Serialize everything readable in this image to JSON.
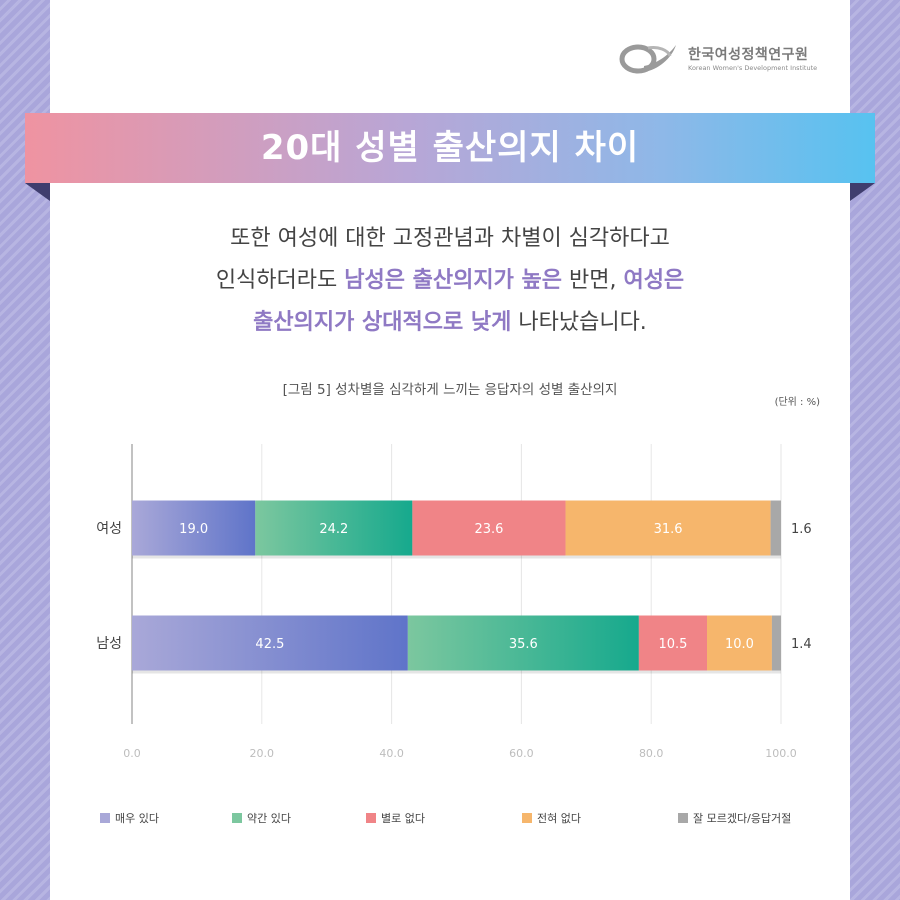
{
  "org": {
    "name": "한국여성정책연구원",
    "name_en": "Korean Women's Development Institute"
  },
  "banner": {
    "title": "20대 성별 출산의지 차이"
  },
  "intro": {
    "line1": "또한 여성에 대한 고정관념과 차별이 심각하다고",
    "line2_a": "인식하더라도 ",
    "line2_hl1": "남성은 출산의지가 높은",
    "line2_b": " 반면, ",
    "line2_hl2": "여성은",
    "line3_hl": "출산의지가 상대적으로 낮게",
    "line3_b": " 나타났습니다."
  },
  "figure": {
    "title": "[그림 5] 성차별을 심각하게 느끼는 응답자의 성별 출산의지",
    "unit": "(단위 : %)"
  },
  "colors": {
    "very": [
      "#a9a8d8",
      "#5f74c9"
    ],
    "some": [
      "#7cc79f",
      "#16a98d"
    ],
    "not_much": [
      "#f08487",
      "#f08487"
    ],
    "none": [
      "#f6b66c",
      "#f6b66c"
    ],
    "dk": [
      "#a8a8a8",
      "#a8a8a8"
    ],
    "highlight": "#8f79c4"
  },
  "chart_data": {
    "type": "bar",
    "orientation": "horizontal",
    "stacked": true,
    "categories": [
      "여성",
      "남성"
    ],
    "series": [
      {
        "name": "매우 있다",
        "values": [
          19.0,
          42.5
        ],
        "color_key": "very"
      },
      {
        "name": "약간 있다",
        "values": [
          24.2,
          35.6
        ],
        "color_key": "some"
      },
      {
        "name": "별로 없다",
        "values": [
          23.6,
          10.5
        ],
        "color_key": "not_much"
      },
      {
        "name": "전혀 없다",
        "values": [
          31.6,
          10.0
        ],
        "color_key": "none"
      },
      {
        "name": "잘 모르겠다/응답거절",
        "values": [
          1.6,
          1.4
        ],
        "color_key": "dk"
      }
    ],
    "segment_labels": [
      [
        "19.0",
        "24.2",
        "23.6",
        "31.6",
        "1.6"
      ],
      [
        "42.5",
        "35.6",
        "10.5",
        "10.0",
        "1.4"
      ]
    ],
    "xlim": [
      0,
      100
    ],
    "xticks": [
      "0.0",
      "20.0",
      "40.0",
      "60.0",
      "80.0",
      "100.0"
    ],
    "grid": true,
    "legend_position": "bottom"
  }
}
